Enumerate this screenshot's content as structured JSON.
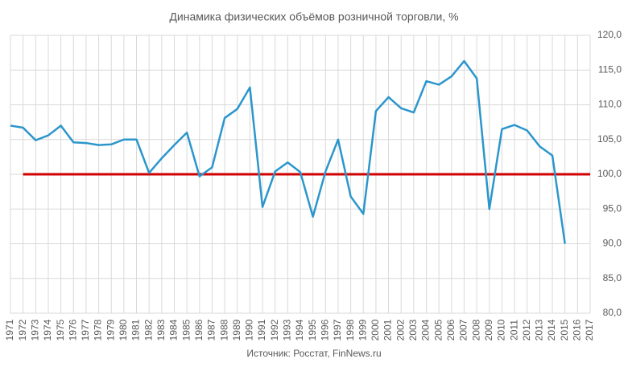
{
  "chart_data": {
    "type": "line",
    "title": "Динамика физических объёмов розничной торговли, %",
    "source": "Источник: Росстат, FinNews.ru",
    "x": [
      1971,
      1972,
      1973,
      1974,
      1975,
      1976,
      1977,
      1978,
      1979,
      1980,
      1981,
      1982,
      1983,
      1984,
      1985,
      1986,
      1987,
      1988,
      1989,
      1990,
      1991,
      1992,
      1993,
      1994,
      1995,
      1996,
      1997,
      1998,
      1999,
      2000,
      2001,
      2002,
      2003,
      2004,
      2005,
      2006,
      2007,
      2008,
      2009,
      2010,
      2011,
      2012,
      2013,
      2014,
      2015
    ],
    "series": [
      {
        "color": "#2b96cc",
        "values": [
          107.0,
          106.7,
          104.9,
          105.6,
          107.0,
          104.6,
          104.5,
          104.2,
          104.3,
          105.0,
          105.0,
          100.2,
          102.3,
          104.2,
          106.0,
          99.7,
          101.0,
          108.1,
          109.4,
          112.5,
          95.3,
          100.4,
          101.7,
          100.3,
          93.9,
          100.4,
          105.0,
          96.8,
          94.3,
          109.1,
          111.1,
          109.5,
          108.9,
          113.4,
          112.9,
          114.1,
          116.3,
          113.8,
          95.0,
          106.5,
          107.1,
          106.3,
          104.0,
          102.7,
          90.0
        ]
      }
    ],
    "hlines": [
      {
        "y": 100,
        "x": [
          1972,
          2017
        ],
        "color": "#d00000"
      }
    ],
    "xlim": [
      1971,
      2017
    ],
    "xticks": [
      1971,
      1972,
      1973,
      1974,
      1975,
      1976,
      1977,
      1978,
      1979,
      1980,
      1981,
      1982,
      1983,
      1984,
      1985,
      1986,
      1987,
      1988,
      1989,
      1990,
      1991,
      1992,
      1993,
      1994,
      1995,
      1996,
      1997,
      1998,
      1999,
      2000,
      2001,
      2002,
      2003,
      2004,
      2005,
      2006,
      2007,
      2008,
      2009,
      2010,
      2011,
      2012,
      2013,
      2014,
      2015,
      2016,
      2017
    ],
    "ylim": [
      80,
      120
    ],
    "yticks": [
      {
        "value": 80,
        "label": "80,0"
      },
      {
        "value": 85,
        "label": "85,0"
      },
      {
        "value": 90,
        "label": "90,0"
      },
      {
        "value": 95,
        "label": "95,0"
      },
      {
        "value": 100,
        "label": "100,0"
      },
      {
        "value": 105,
        "label": "105,0"
      },
      {
        "value": 110,
        "label": "110,0"
      },
      {
        "value": 115,
        "label": "115,0"
      },
      {
        "value": 120,
        "label": "120,0"
      }
    ],
    "grid": true
  }
}
